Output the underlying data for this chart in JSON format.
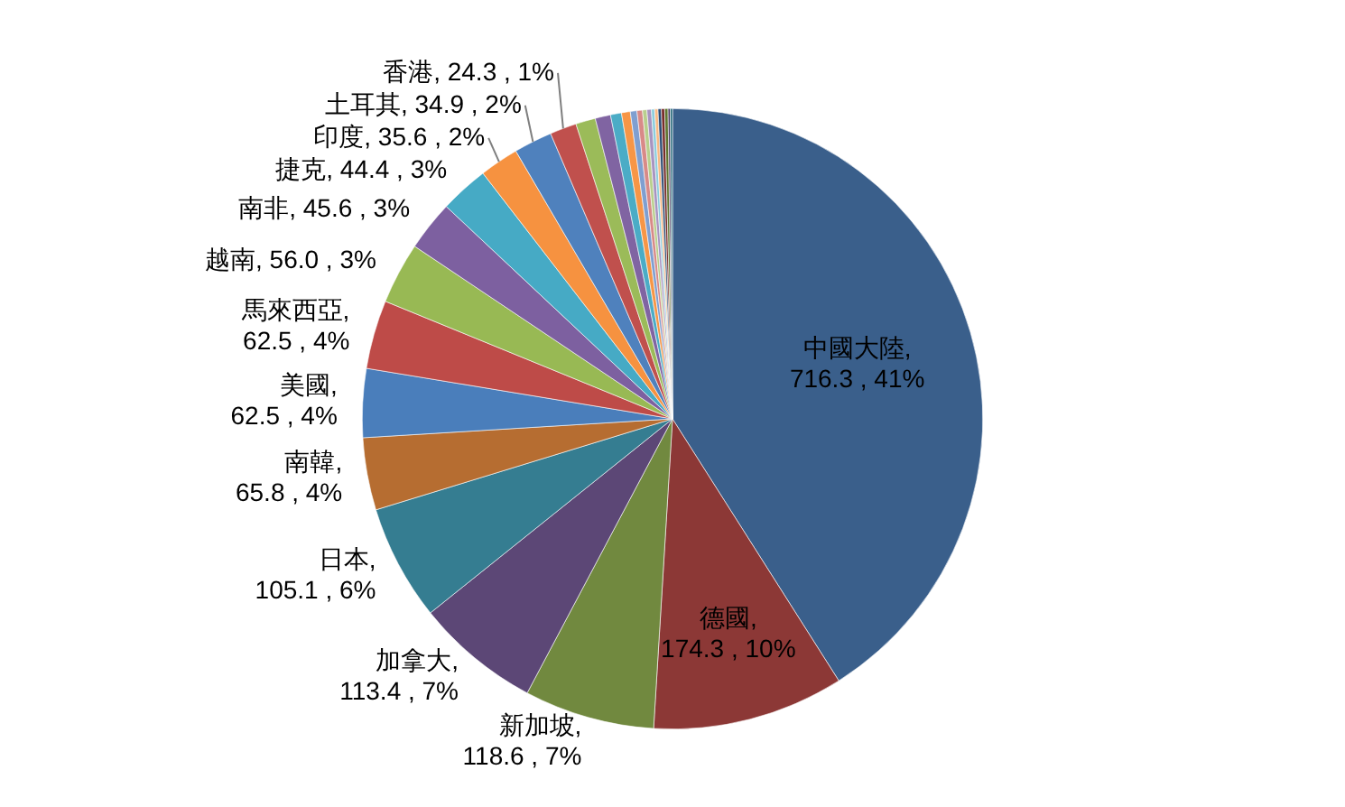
{
  "chart_data": {
    "type": "pie",
    "categories": [
      "中國大陸",
      "德國",
      "新加坡",
      "加拿大",
      "日本",
      "南韓",
      "美國",
      "馬來西亞",
      "越南",
      "南非",
      "捷克",
      "印度",
      "土耳其",
      "香港",
      null,
      null,
      null,
      null,
      null,
      null,
      null,
      null,
      null,
      null,
      null,
      null,
      null,
      null,
      null
    ],
    "values": [
      716.3,
      174.3,
      118.6,
      113.4,
      105.1,
      65.8,
      62.5,
      62.5,
      56.0,
      45.6,
      44.4,
      35.6,
      34.9,
      24.3,
      18,
      14,
      10,
      8,
      6,
      5,
      4,
      4,
      3,
      3,
      3,
      3,
      3,
      2,
      2
    ],
    "colors": [
      "#3a5f8b",
      "#8c3836",
      "#71893f",
      "#5c4776",
      "#357d91",
      "#b66d31",
      "#4a7ebb",
      "#be4b48",
      "#98b954",
      "#7d60a0",
      "#46aac5",
      "#f69240",
      "#4f81bd",
      "#c0504d",
      "#9bbb59",
      "#8064a2",
      "#4bacc6",
      "#f79646",
      "#7f9fd0",
      "#d88a88",
      "#b9cf8d",
      "#a894c0",
      "#8ccddd",
      "#f9b984",
      "#2c4d75",
      "#772c2a",
      "#5f7530",
      "#4d3b62",
      "#276a7c"
    ],
    "value_labels": [
      ", 716.3 , 41%",
      ", 174.3 , 10%",
      ", 118.6 , 7%",
      ", 113.4 , 7%",
      ", 105.1 , 6%",
      ", 65.8 , 4%",
      ", 62.5 , 4%",
      ", 62.5 , 4%",
      ", 56.0 , 3%",
      ", 45.6 , 3%",
      ", 44.4 , 3%",
      ", 35.6 , 2%",
      ", 34.9 , 2%",
      ", 24.3 , 1%",
      null,
      null,
      null,
      null,
      null,
      null,
      null,
      null,
      null,
      null,
      null,
      null,
      null,
      null,
      null
    ],
    "legend": false
  }
}
